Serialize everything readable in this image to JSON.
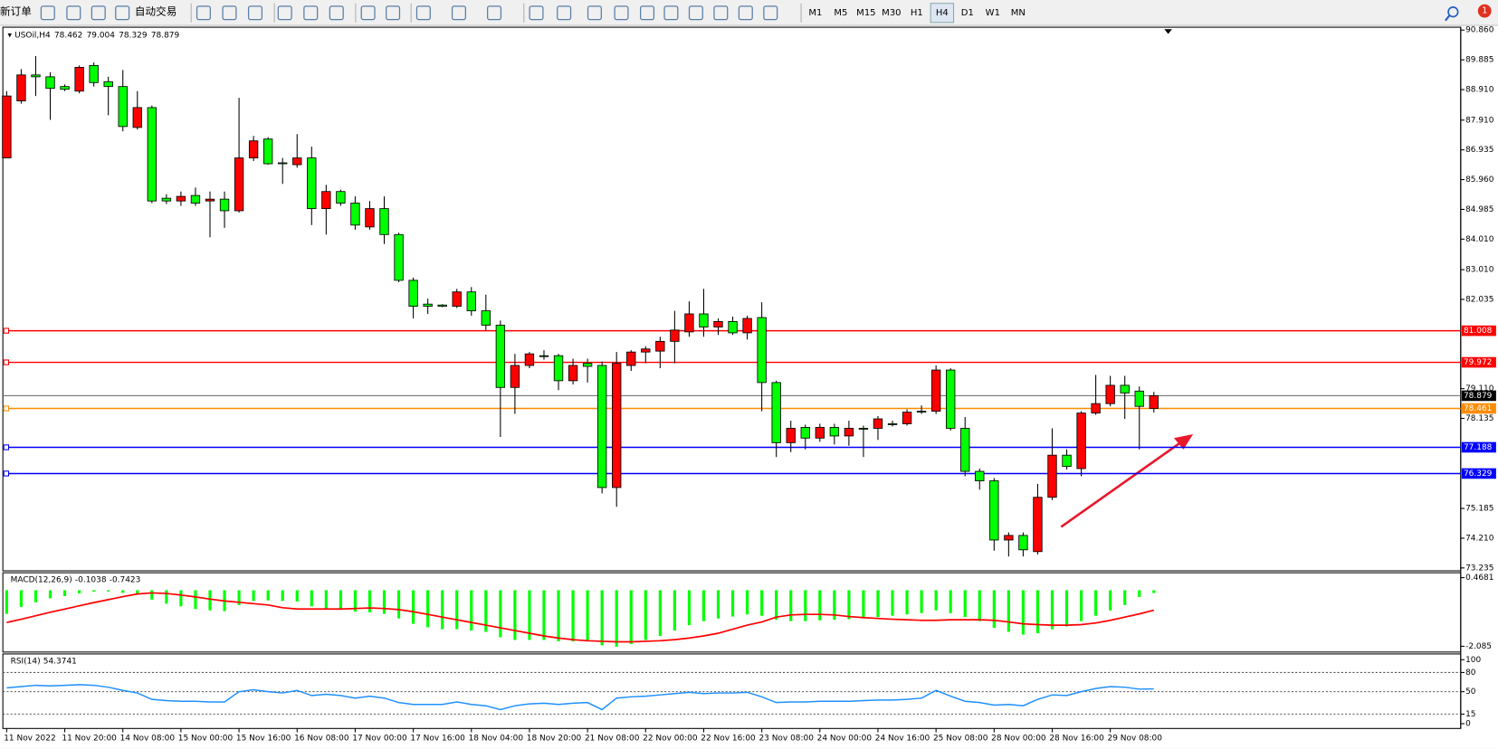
{
  "toolbar": {
    "new_order": "新订单",
    "auto_trading": "自动交易",
    "timeframes": [
      "M1",
      "M5",
      "M15",
      "M30",
      "H1",
      "H4",
      "D1",
      "W1",
      "MN"
    ],
    "active_timeframe": "H4",
    "notifications": 1
  },
  "chart_data": [
    {
      "type": "candlestick",
      "title": "USOil,H4",
      "up_color": "#ff0000",
      "down_color": "#00ff00",
      "categories": [
        "11 Nov 2022",
        null,
        null,
        null,
        "11 Nov 20:00",
        null,
        null,
        null,
        "14 Nov 08:00",
        null,
        null,
        null,
        "15 Nov 00:00",
        null,
        null,
        null,
        "15 Nov 16:00",
        null,
        null,
        null,
        "16 Nov 08:00",
        null,
        null,
        null,
        "17 Nov 00:00",
        null,
        null,
        null,
        "17 Nov 16:00",
        null,
        null,
        null,
        "18 Nov 04:00",
        null,
        null,
        null,
        "18 Nov 20:00",
        null,
        null,
        null,
        "21 Nov 08:00",
        null,
        null,
        null,
        "22 Nov 00:00",
        null,
        null,
        null,
        "22 Nov 16:00",
        null,
        null,
        null,
        "23 Nov 08:00",
        null,
        null,
        null,
        "24 Nov 00:00",
        null,
        null,
        null,
        "24 Nov 16:00",
        null,
        null,
        null,
        "25 Nov 08:00",
        null,
        null,
        null,
        "28 Nov 00:00",
        null,
        null,
        null,
        "28 Nov 16:00",
        null,
        null,
        null,
        "29 Nov 08:00",
        null,
        null,
        null
      ],
      "ohlc": [
        [
          86.67,
          88.86,
          86.67,
          88.7
        ],
        [
          88.54,
          89.58,
          88.45,
          89.39
        ],
        [
          89.39,
          90.01,
          88.7,
          89.33
        ],
        [
          89.33,
          89.48,
          87.92,
          88.95
        ],
        [
          89.01,
          89.08,
          88.86,
          88.92
        ],
        [
          88.86,
          89.7,
          88.79,
          89.64
        ],
        [
          89.7,
          89.8,
          89.01,
          89.14
        ],
        [
          89.17,
          89.33,
          88.07,
          89.01
        ],
        [
          89.01,
          89.55,
          87.54,
          87.7
        ],
        [
          87.67,
          88.86,
          87.6,
          88.32
        ],
        [
          88.32,
          88.39,
          85.19,
          85.26
        ],
        [
          85.35,
          85.48,
          85.16,
          85.26
        ],
        [
          85.26,
          85.57,
          85.1,
          85.41
        ],
        [
          85.44,
          85.7,
          85.1,
          85.19
        ],
        [
          85.26,
          85.57,
          84.07,
          85.32
        ],
        [
          85.32,
          85.57,
          84.38,
          84.94
        ],
        [
          84.94,
          88.64,
          84.88,
          86.67
        ],
        [
          86.67,
          87.39,
          86.57,
          87.23
        ],
        [
          87.29,
          87.35,
          86.45,
          86.48
        ],
        [
          86.51,
          86.67,
          85.82,
          86.48
        ],
        [
          86.45,
          87.45,
          86.35,
          86.67
        ],
        [
          86.67,
          87.04,
          84.47,
          85.01
        ],
        [
          85.01,
          85.79,
          84.16,
          85.57
        ],
        [
          85.57,
          85.63,
          85.1,
          85.19
        ],
        [
          85.19,
          85.41,
          84.32,
          84.47
        ],
        [
          84.41,
          85.26,
          84.32,
          85.01
        ],
        [
          85.01,
          85.41,
          83.85,
          84.16
        ],
        [
          84.16,
          84.22,
          82.6,
          82.66
        ],
        [
          82.66,
          82.75,
          81.41,
          81.81
        ],
        [
          81.88,
          82.06,
          81.56,
          81.81
        ],
        [
          81.85,
          81.88,
          81.78,
          81.81
        ],
        [
          81.81,
          82.38,
          81.75,
          82.28
        ],
        [
          82.28,
          82.44,
          81.5,
          81.66
        ],
        [
          81.66,
          82.19,
          81.03,
          81.19
        ],
        [
          81.19,
          81.34,
          77.53,
          79.15
        ],
        [
          79.15,
          80.25,
          78.28,
          79.87
        ],
        [
          79.87,
          80.31,
          79.78,
          80.25
        ],
        [
          80.19,
          80.37,
          80.06,
          80.16
        ],
        [
          80.19,
          80.25,
          79.06,
          79.37
        ],
        [
          79.37,
          80.09,
          79.25,
          79.87
        ],
        [
          79.94,
          80.09,
          79.31,
          79.84
        ],
        [
          79.87,
          80.0,
          75.68,
          75.87
        ],
        [
          75.87,
          80.31,
          75.24,
          79.94
        ],
        [
          79.87,
          80.37,
          79.69,
          80.31
        ],
        [
          80.31,
          80.5,
          79.94,
          80.41
        ],
        [
          80.34,
          80.81,
          79.78,
          80.66
        ],
        [
          80.66,
          81.66,
          79.94,
          81.03
        ],
        [
          80.97,
          81.97,
          80.81,
          81.56
        ],
        [
          81.56,
          82.38,
          80.81,
          81.13
        ],
        [
          81.13,
          81.41,
          80.87,
          81.31
        ],
        [
          81.31,
          81.47,
          80.87,
          80.94
        ],
        [
          80.94,
          81.5,
          80.72,
          81.41
        ],
        [
          81.44,
          81.94,
          78.37,
          79.31
        ],
        [
          79.31,
          79.37,
          76.87,
          77.34
        ],
        [
          77.34,
          78.06,
          77.03,
          77.81
        ],
        [
          77.84,
          77.93,
          77.12,
          77.49
        ],
        [
          77.49,
          77.96,
          77.37,
          77.84
        ],
        [
          77.84,
          77.96,
          77.28,
          77.56
        ],
        [
          77.56,
          78.06,
          77.24,
          77.81
        ],
        [
          77.81,
          77.9,
          76.87,
          77.78
        ],
        [
          77.81,
          78.21,
          77.43,
          78.12
        ],
        [
          77.96,
          78.06,
          77.87,
          77.93
        ],
        [
          77.96,
          78.43,
          77.9,
          78.34
        ],
        [
          78.37,
          78.56,
          78.28,
          78.34
        ],
        [
          78.37,
          79.87,
          78.28,
          79.72
        ],
        [
          79.72,
          79.78,
          77.74,
          77.81
        ],
        [
          77.81,
          78.18,
          76.24,
          76.4
        ],
        [
          76.4,
          76.49,
          75.8,
          76.09
        ],
        [
          76.09,
          76.18,
          73.8,
          74.15
        ],
        [
          74.15,
          74.4,
          73.61,
          74.3
        ],
        [
          74.3,
          74.4,
          73.61,
          73.83
        ],
        [
          73.77,
          75.99,
          73.68,
          75.55
        ],
        [
          75.55,
          77.81,
          75.46,
          76.93
        ],
        [
          76.93,
          77.12,
          76.46,
          76.56
        ],
        [
          76.49,
          78.37,
          76.24,
          78.31
        ],
        [
          78.31,
          79.56,
          78.25,
          78.62
        ],
        [
          78.62,
          79.53,
          78.53,
          79.22
        ],
        [
          79.22,
          79.53,
          78.12,
          78.97
        ],
        [
          79.03,
          79.18,
          77.12,
          78.53
        ],
        [
          78.462,
          79.004,
          78.329,
          78.879
        ]
      ],
      "ylim": [
        73.14,
        90.954
      ],
      "yticks": [
        {
          "value": 90.86,
          "label": "90.860"
        },
        89.885,
        {
          "value": 88.91,
          "label": "88.910"
        },
        {
          "value": 87.91,
          "label": "87.910"
        },
        86.935,
        {
          "value": 85.96,
          "label": "85.960"
        },
        84.985,
        {
          "value": 84.01,
          "label": "84.010"
        },
        {
          "value": 83.01,
          "label": "83.010"
        },
        82.035,
        {
          "value": 79.11,
          "label": "79.110"
        },
        78.135,
        75.185,
        {
          "value": 74.21,
          "label": "74.210"
        },
        73.235
      ],
      "hlines": [
        {
          "value": 81.008,
          "color": "#ff0000"
        },
        {
          "value": 79.972,
          "color": "#ff0000"
        },
        {
          "value": 78.461,
          "color": "#ff8c00"
        },
        {
          "value": 77.188,
          "color": "#0000ff"
        },
        {
          "value": 76.329,
          "color": "#0000ff"
        }
      ]
    },
    {
      "type": "macd",
      "title": "MACD(12,26,9)",
      "histogram": {
        "color": "#00ff00",
        "values": [
          -0.88,
          -0.62,
          -0.45,
          -0.3,
          -0.22,
          -0.12,
          -0.05,
          -0.05,
          -0.1,
          -0.15,
          -0.35,
          -0.5,
          -0.6,
          -0.7,
          -0.75,
          -0.78,
          -0.55,
          -0.4,
          -0.38,
          -0.4,
          -0.42,
          -0.6,
          -0.68,
          -0.72,
          -0.8,
          -0.82,
          -0.88,
          -1.05,
          -1.25,
          -1.38,
          -1.45,
          -1.45,
          -1.5,
          -1.55,
          -1.75,
          -1.85,
          -1.85,
          -1.85,
          -1.9,
          -1.9,
          -1.9,
          -2.05,
          -2.1,
          -2.0,
          -1.85,
          -1.7,
          -1.5,
          -1.3,
          -1.15,
          -1.05,
          -0.98,
          -0.9,
          -0.95,
          -1.1,
          -1.15,
          -1.15,
          -1.12,
          -1.1,
          -1.08,
          -1.05,
          -1.0,
          -0.95,
          -0.9,
          -0.85,
          -0.75,
          -0.85,
          -1.0,
          -1.15,
          -1.4,
          -1.55,
          -1.65,
          -1.6,
          -1.45,
          -1.35,
          -1.15,
          -0.95,
          -0.75,
          -0.55,
          -0.25,
          -0.1038
        ]
      },
      "signal": {
        "color": "#ff0000",
        "values": [
          -1.2,
          -1.08,
          -0.95,
          -0.82,
          -0.7,
          -0.58,
          -0.46,
          -0.35,
          -0.24,
          -0.14,
          -0.1,
          -0.12,
          -0.18,
          -0.25,
          -0.33,
          -0.4,
          -0.45,
          -0.5,
          -0.55,
          -0.65,
          -0.7,
          -0.7,
          -0.7,
          -0.7,
          -0.68,
          -0.66,
          -0.68,
          -0.72,
          -0.8,
          -0.9,
          -1.0,
          -1.1,
          -1.2,
          -1.3,
          -1.4,
          -1.5,
          -1.6,
          -1.7,
          -1.78,
          -1.84,
          -1.88,
          -1.9,
          -1.92,
          -1.92,
          -1.9,
          -1.88,
          -1.84,
          -1.78,
          -1.7,
          -1.6,
          -1.45,
          -1.3,
          -1.18,
          -1.0,
          -0.92,
          -0.9,
          -0.9,
          -0.92,
          -0.98,
          -1.02,
          -1.05,
          -1.08,
          -1.1,
          -1.12,
          -1.12,
          -1.1,
          -1.1,
          -1.1,
          -1.12,
          -1.18,
          -1.25,
          -1.28,
          -1.3,
          -1.3,
          -1.28,
          -1.22,
          -1.12,
          -1.0,
          -0.88,
          -0.7423
        ]
      },
      "ylim": [
        -2.3,
        0.65
      ],
      "yticks": [
        0.4681,
        -2.085
      ]
    },
    {
      "type": "line",
      "title": "RSI(14)",
      "color": "#1e90ff",
      "values": [
        56,
        58,
        60,
        59,
        60,
        61,
        60,
        57,
        52,
        48,
        38,
        36,
        35,
        35,
        34,
        34,
        50,
        53,
        50,
        48,
        52,
        44,
        46,
        44,
        40,
        43,
        40,
        33,
        30,
        30,
        30,
        34,
        30,
        28,
        22,
        28,
        31,
        32,
        30,
        32,
        33,
        22,
        40,
        42,
        43,
        45,
        47,
        49,
        47,
        48,
        48,
        49,
        42,
        33,
        34,
        34,
        35,
        35,
        35,
        36,
        37,
        37,
        38,
        40,
        52,
        43,
        35,
        33,
        29,
        30,
        28,
        38,
        45,
        44,
        50,
        55,
        58,
        57,
        54,
        54.3741
      ],
      "ylim": [
        -7.5,
        109
      ],
      "yticks": [
        0,
        15,
        50,
        80,
        100
      ]
    }
  ]
}
